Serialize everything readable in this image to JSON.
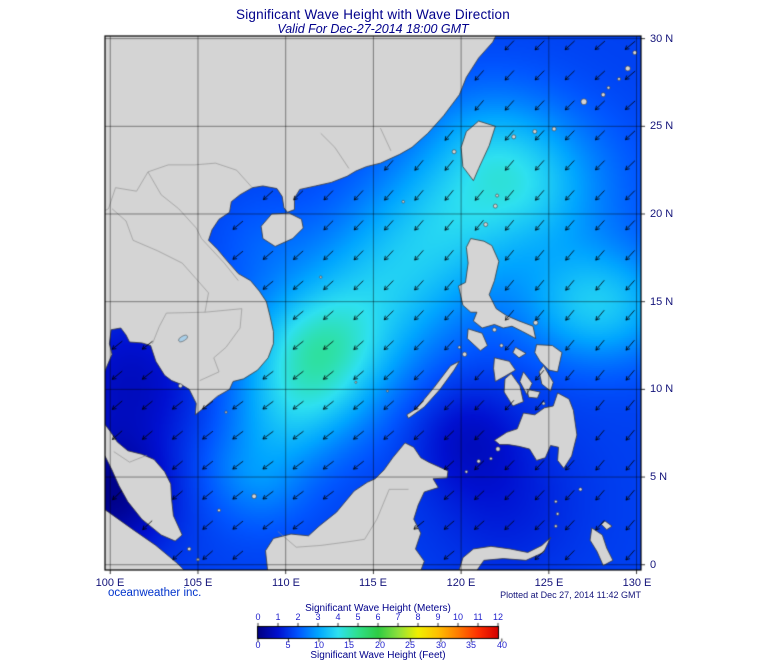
{
  "header": {
    "title": "Significant Wave Height with Wave Direction",
    "subtitle": "Valid For Dec-27-2014 18:00 GMT"
  },
  "map": {
    "x_ticks": [
      "100 E",
      "105 E",
      "110 E",
      "115 E",
      "120 E",
      "125 E",
      "130 E"
    ],
    "y_ticks": [
      "30 N",
      "25 N",
      "20 N",
      "15 N",
      "10 N",
      "5 N",
      "0"
    ]
  },
  "footer": {
    "credit": "oceanweather inc.",
    "plotted": "Plotted at Dec 27, 2014 11:42 GMT"
  },
  "legend": {
    "meters_label": "Significant Wave Height (Meters)",
    "feet_label": "Significant Wave Height (Feet)",
    "meters_ticks": [
      "0",
      "1",
      "2",
      "3",
      "4",
      "5",
      "6",
      "7",
      "8",
      "9",
      "10",
      "11",
      "12"
    ],
    "feet_ticks": [
      "0",
      "5",
      "10",
      "15",
      "20",
      "25",
      "30",
      "35",
      "40"
    ],
    "colors": [
      "#000082",
      "#0010d0",
      "#0055ff",
      "#00a5ff",
      "#2ee0f0",
      "#2ee08c",
      "#2ecc44",
      "#8ce03c",
      "#f0f000",
      "#ffc000",
      "#ff7c00",
      "#ff3000",
      "#d40000"
    ]
  },
  "chart_data": {
    "type": "heatmap",
    "title": "Significant Wave Height with Wave Direction",
    "valid_time": "Dec-27-2014 18:00 GMT",
    "x_ticks_deg_e": [
      100,
      105,
      110,
      115,
      120,
      125,
      130
    ],
    "y_ticks_deg_n": [
      0,
      5,
      10,
      15,
      20,
      25,
      30
    ],
    "grid_interval_deg": 5,
    "colorbar": {
      "meters_range": [
        0,
        12
      ],
      "feet_range": [
        0,
        40
      ],
      "tick_interval_m": 1,
      "tick_interval_ft": 5
    },
    "overlay": "wave direction arrows pointing toward the southwest (northeast monsoon swell)",
    "estimated_values_m": {
      "south_china_sea_central": 3.5,
      "luzon_strait": 4.0,
      "taiwan_strait": 3.0,
      "pacific_east_of_philippines_15n": 4.0,
      "gulf_of_tonkin": 2.0,
      "gulf_of_thailand": 1.0,
      "sulu_sea": 1.0,
      "celebes_sea": 1.5,
      "malacca_strait": 0.3,
      "east_china_sea": 2.0,
      "open_pacific_low_latitude": 1.7
    }
  }
}
